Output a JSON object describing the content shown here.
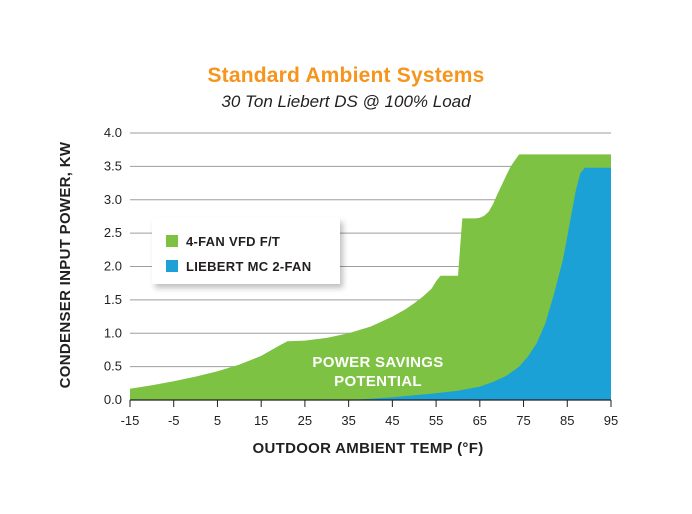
{
  "chart_data": {
    "type": "area",
    "title": "Standard Ambient Systems",
    "subtitle": "30 Ton Liebert DS @ 100% Load",
    "xlabel": "OUTDOOR AMBIENT TEMP (°F)",
    "ylabel": "CONDENSER INPUT POWER, KW",
    "xlim": [
      -15,
      95
    ],
    "ylim": [
      0,
      4.0
    ],
    "x_ticks": [
      "-15",
      "-5",
      "5",
      "15",
      "25",
      "35",
      "45",
      "55",
      "65",
      "75",
      "85",
      "95"
    ],
    "y_ticks": [
      "0.0",
      "0.5",
      "1.0",
      "1.5",
      "2.0",
      "2.5",
      "3.0",
      "3.5",
      "4.0"
    ],
    "grid": "horizontal",
    "legend_position": "upper-left",
    "series": [
      {
        "name": "4-FAN VFD F/T",
        "color": "#7dc242",
        "x": [
          -15,
          -10,
          -5,
          0,
          5,
          10,
          15,
          19,
          21,
          25,
          30,
          35,
          40,
          45,
          48,
          50,
          52,
          54,
          55,
          56,
          57,
          58,
          59,
          60,
          61,
          62,
          63,
          64,
          65,
          66,
          67,
          68,
          69,
          70,
          71,
          72,
          73,
          74,
          75,
          80,
          85,
          95
        ],
        "values": [
          0.17,
          0.22,
          0.28,
          0.35,
          0.43,
          0.53,
          0.66,
          0.81,
          0.88,
          0.89,
          0.93,
          1.0,
          1.1,
          1.25,
          1.36,
          1.45,
          1.55,
          1.67,
          1.78,
          1.86,
          1.86,
          1.86,
          1.86,
          1.86,
          2.72,
          2.72,
          2.72,
          2.72,
          2.73,
          2.76,
          2.82,
          2.93,
          3.08,
          3.22,
          3.36,
          3.49,
          3.59,
          3.68,
          3.68,
          3.68,
          3.68,
          3.68
        ]
      },
      {
        "name": "LIEBERT MC 2-FAN",
        "color": "#1ba1d6",
        "x": [
          35,
          40,
          45,
          50,
          55,
          60,
          65,
          68,
          71,
          74,
          76,
          78,
          80,
          82,
          84,
          85,
          86,
          87,
          88,
          89,
          90,
          95
        ],
        "values": [
          0.0,
          0.02,
          0.04,
          0.07,
          0.1,
          0.14,
          0.2,
          0.27,
          0.36,
          0.5,
          0.65,
          0.85,
          1.15,
          1.6,
          2.1,
          2.45,
          2.8,
          3.15,
          3.4,
          3.48,
          3.48,
          3.48
        ]
      }
    ],
    "annotations": [
      "POWER SAVINGS",
      "POTENTIAL"
    ]
  }
}
